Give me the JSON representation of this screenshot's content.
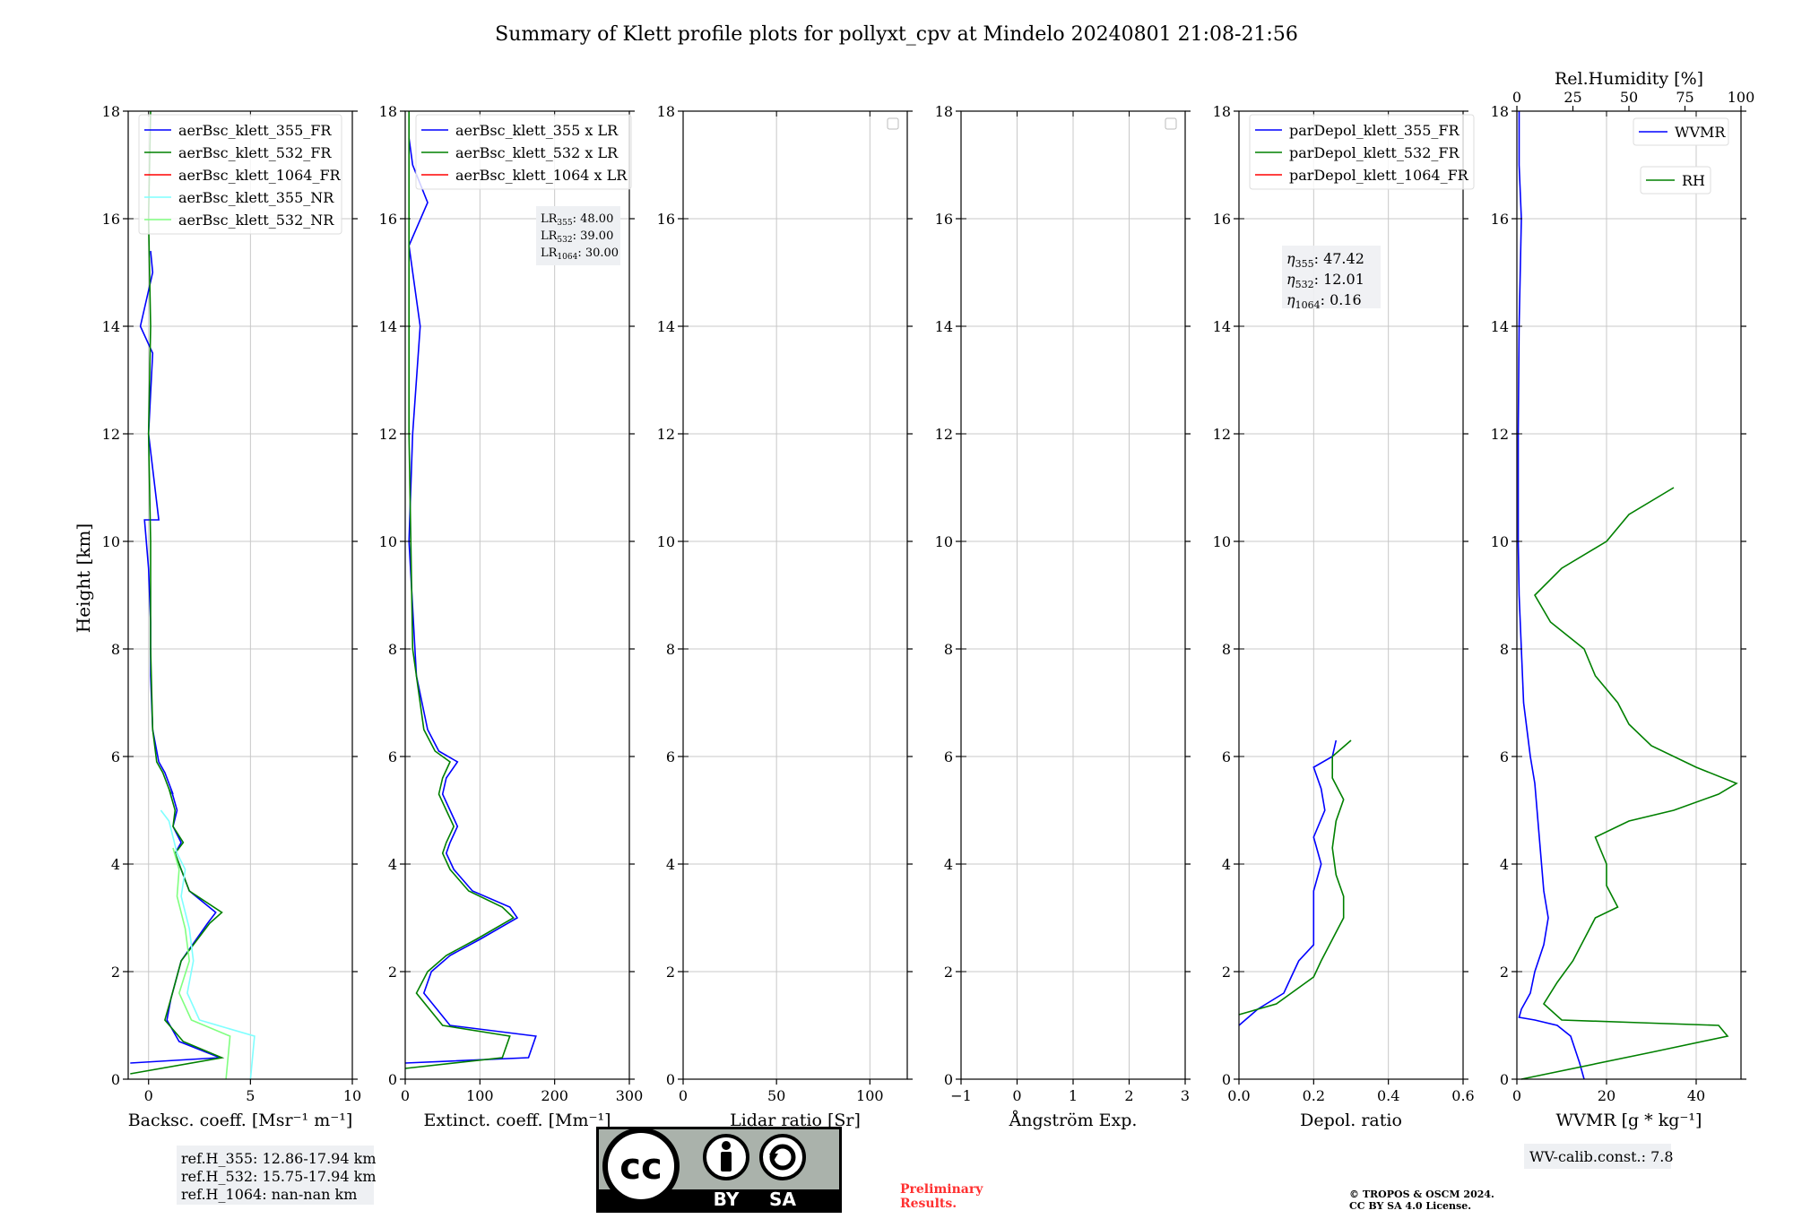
{
  "title": "Summary of Klett profile plots for pollyxt_cpv at Mindelo 20240801 21:08-21:56",
  "ylabel": "Height [km]",
  "colors": {
    "b355": "#0000ff",
    "b532": "#008000",
    "b1064": "#ff0000",
    "nr355": "#7fffff",
    "nr532": "#80ff80",
    "grid": "#c8c8c8"
  },
  "panels": [
    {
      "key": "bsc",
      "xlabel": "Backsc. coeff. [Msr⁻¹ m⁻¹]",
      "xlim": [
        -1,
        10
      ],
      "xticks": [
        0,
        5,
        10
      ],
      "legend": [
        "aerBsc_klett_355_FR",
        "aerBsc_klett_532_FR",
        "aerBsc_klett_1064_FR",
        "aerBsc_klett_355_NR",
        "aerBsc_klett_532_NR"
      ]
    },
    {
      "key": "ext",
      "xlabel": "Extinct. coeff. [Mm⁻¹]",
      "xlim": [
        0,
        300
      ],
      "xticks": [
        0,
        100,
        200,
        300
      ],
      "legend": [
        "aerBsc_klett_355 x LR",
        "aerBsc_klett_532 x LR",
        "aerBsc_klett_1064 x LR"
      ],
      "lr_box": [
        "48.00",
        "39.00",
        "30.00"
      ]
    },
    {
      "key": "lr",
      "xlabel": "Lidar ratio [Sr]",
      "xlim": [
        0,
        120
      ],
      "xticks": [
        0,
        50,
        100
      ],
      "legend": []
    },
    {
      "key": "ang",
      "xlabel": "Ångström Exp.",
      "xlim": [
        -1,
        3
      ],
      "xticks": [
        -1,
        0,
        1,
        2,
        3
      ],
      "legend": []
    },
    {
      "key": "dep",
      "xlabel": "Depol. ratio",
      "xlim": [
        0,
        0.6
      ],
      "xticks": [
        0.0,
        0.2,
        0.4,
        0.6
      ],
      "xtick_labels": [
        "0.0",
        "0.2",
        "0.4",
        "0.6"
      ],
      "legend": [
        "parDepol_klett_355_FR",
        "parDepol_klett_532_FR",
        "parDepol_klett_1064_FR"
      ],
      "eta": [
        "47.42",
        "12.01",
        "0.16"
      ]
    },
    {
      "key": "wv",
      "xlabel": "WVMR [g * kg⁻¹]",
      "xlim": [
        0,
        50
      ],
      "xticks": [
        0,
        20,
        40
      ],
      "legend": [
        "WVMR",
        "RH"
      ],
      "top_label": "Rel.Humidity [%]",
      "top_xlim": [
        0,
        100
      ],
      "top_ticks": [
        0,
        25,
        50,
        75,
        100
      ]
    }
  ],
  "refh": [
    "ref.H_355: 12.86-17.94 km",
    "ref.H_532: 15.75-17.94 km",
    "ref.H_1064: nan-nan km"
  ],
  "wv_calib": "WV-calib.const.: 7.8",
  "preliminary": [
    "Preliminary",
    "Results."
  ],
  "copyright": [
    "© TROPOS & OSCM 2024.",
    "CC BY SA 4.0 License."
  ],
  "cc_labels": {
    "cc": "cc",
    "by": "BY",
    "sa": "SA"
  },
  "chart_data": [
    {
      "type": "line",
      "title": "Summary of Klett profile plots for pollyxt_cpv at Mindelo 20240801 21:08-21:56",
      "xlabel": "Backsc. coeff. [Msr⁻¹ m⁻¹]",
      "ylabel": "Height [km]",
      "xlim": [
        -1,
        10
      ],
      "ylim": [
        0,
        18
      ],
      "grid": true,
      "legend_position": "top-left",
      "series": [
        {
          "name": "aerBsc_klett_355_FR",
          "x": [
            -0.9,
            3.5,
            1.5,
            0.9,
            1.1,
            1.6,
            2.9,
            3.3,
            2.0,
            1.6,
            1.3,
            1.6,
            1.2,
            1.4,
            1.1,
            1.2,
            0.8,
            0.5,
            0.2,
            0.1,
            0.1,
            0.0,
            -0.2,
            0.5,
            0.0,
            0.2,
            -0.4,
            0.2,
            0.1
          ],
          "y": [
            0.3,
            0.4,
            0.7,
            1.1,
            1.5,
            2.2,
            2.9,
            3.1,
            3.5,
            3.9,
            4.2,
            4.4,
            4.7,
            5.0,
            5.4,
            5.3,
            5.7,
            5.9,
            6.5,
            7.5,
            8.5,
            9.5,
            10.4,
            10.4,
            12,
            13.5,
            14.0,
            15.0,
            15.4
          ]
        },
        {
          "name": "aerBsc_klett_532_FR",
          "x": [
            -0.9,
            3.6,
            1.7,
            0.8,
            1.1,
            1.6,
            3.0,
            3.6,
            2.0,
            1.6,
            1.3,
            1.7,
            1.2,
            1.3,
            1.0,
            1.1,
            0.7,
            0.4,
            0.2,
            0.1,
            0.1,
            0.0,
            0.1,
            0.0,
            0.1
          ],
          "y": [
            0.1,
            0.4,
            0.7,
            1.1,
            1.5,
            2.2,
            2.9,
            3.1,
            3.5,
            3.9,
            4.2,
            4.4,
            4.7,
            5.0,
            5.4,
            5.3,
            5.7,
            5.9,
            6.5,
            8,
            10,
            12,
            14,
            16,
            18
          ]
        },
        {
          "name": "aerBsc_klett_1064_FR",
          "x": [],
          "y": []
        },
        {
          "name": "aerBsc_klett_355_NR",
          "x": [
            5.0,
            5.2,
            2.5,
            1.9,
            2.2,
            2.0,
            1.6,
            1.8,
            1.4,
            1.2,
            1.0,
            0.6
          ],
          "y": [
            0.0,
            0.8,
            1.1,
            1.6,
            2.2,
            2.8,
            3.4,
            3.9,
            4.2,
            4.5,
            4.8,
            5.0
          ]
        },
        {
          "name": "aerBsc_klett_532_NR",
          "x": [
            3.8,
            4.0,
            2.1,
            1.5,
            2.0,
            1.8,
            1.4,
            1.5,
            1.2
          ],
          "y": [
            0.0,
            0.8,
            1.1,
            1.6,
            2.2,
            2.8,
            3.4,
            3.9,
            4.3
          ]
        }
      ]
    },
    {
      "type": "line",
      "xlabel": "Extinct. coeff. [Mm⁻¹]",
      "xlim": [
        0,
        300
      ],
      "ylim": [
        0,
        18
      ],
      "grid": true,
      "legend_position": "top-left",
      "lidar_ratios_sr": {
        "355": 48.0,
        "532": 39.0,
        "1064": 30.0
      },
      "series": [
        {
          "name": "aerBsc_klett_355 x LR",
          "x": [
            0,
            165,
            175,
            60,
            25,
            35,
            60,
            100,
            150,
            140,
            90,
            65,
            55,
            60,
            70,
            60,
            50,
            55,
            70,
            45,
            30,
            15,
            5,
            10,
            20,
            5,
            30,
            10,
            5
          ],
          "y": [
            0.3,
            0.4,
            0.8,
            1.0,
            1.6,
            2.0,
            2.3,
            2.6,
            3.0,
            3.2,
            3.5,
            3.9,
            4.2,
            4.4,
            4.7,
            5.0,
            5.3,
            5.6,
            5.9,
            6.1,
            6.5,
            7.5,
            10,
            12,
            14,
            15.5,
            16.3,
            17.0,
            17.5
          ]
        },
        {
          "name": "aerBsc_klett_532 x LR",
          "x": [
            0,
            130,
            140,
            50,
            15,
            30,
            55,
            95,
            145,
            130,
            85,
            60,
            50,
            55,
            65,
            55,
            45,
            50,
            60,
            40,
            25,
            10,
            5,
            5,
            5
          ],
          "y": [
            0.2,
            0.4,
            0.8,
            1.0,
            1.6,
            2.0,
            2.3,
            2.6,
            3.0,
            3.2,
            3.5,
            3.9,
            4.2,
            4.4,
            4.7,
            5.0,
            5.3,
            5.6,
            5.9,
            6.1,
            6.5,
            8,
            12,
            16,
            18
          ]
        },
        {
          "name": "aerBsc_klett_1064 x LR",
          "x": [],
          "y": []
        }
      ]
    },
    {
      "type": "line",
      "xlabel": "Lidar ratio [Sr]",
      "xlim": [
        0,
        120
      ],
      "ylim": [
        0,
        18
      ],
      "grid": true,
      "series": []
    },
    {
      "type": "line",
      "xlabel": "Ångström Exp.",
      "xlim": [
        -1,
        3
      ],
      "ylim": [
        0,
        18
      ],
      "grid": true,
      "series": []
    },
    {
      "type": "line",
      "xlabel": "Depol. ratio",
      "xlim": [
        0,
        0.6
      ],
      "ylim": [
        0,
        18
      ],
      "grid": true,
      "legend_position": "top-left",
      "values_eta": {
        "355": 47.42,
        "532": 12.01,
        "1064": 0.16
      },
      "series": [
        {
          "name": "parDepol_klett_355_FR",
          "x": [
            0.0,
            0.05,
            0.12,
            0.14,
            0.16,
            0.2,
            0.2,
            0.2,
            0.22,
            0.2,
            0.23,
            0.22,
            0.2,
            0.25,
            0.26
          ],
          "y": [
            1.0,
            1.3,
            1.6,
            1.9,
            2.2,
            2.5,
            3.0,
            3.5,
            4.0,
            4.5,
            5.0,
            5.4,
            5.8,
            6.0,
            6.3
          ]
        },
        {
          "name": "parDepol_klett_532_FR",
          "x": [
            0.0,
            0.1,
            0.2,
            0.22,
            0.25,
            0.28,
            0.28,
            0.26,
            0.25,
            0.26,
            0.28,
            0.25,
            0.25,
            0.3
          ],
          "y": [
            1.2,
            1.4,
            1.9,
            2.2,
            2.6,
            3.0,
            3.4,
            3.8,
            4.3,
            4.8,
            5.2,
            5.6,
            6.0,
            6.3
          ]
        },
        {
          "name": "parDepol_klett_1064_FR",
          "x": [],
          "y": []
        }
      ]
    },
    {
      "type": "line",
      "xlabel": "WVMR [g * kg⁻¹]",
      "xlim": [
        0,
        50
      ],
      "ylim": [
        0,
        18
      ],
      "grid": true,
      "legend_position": "top-right",
      "top_axis": {
        "label": "Rel.Humidity [%]",
        "xlim": [
          0,
          100
        ]
      },
      "series": [
        {
          "name": "WVMR",
          "x": [
            15,
            14,
            12,
            9,
            4,
            0.5,
            1,
            3,
            4,
            6,
            7,
            6,
            5,
            4,
            3,
            1.5,
            1,
            0.5,
            0.3,
            0.3,
            0.5,
            1,
            0.5,
            0.5
          ],
          "y": [
            0.0,
            0.3,
            0.8,
            1.0,
            1.1,
            1.15,
            1.3,
            1.6,
            2.0,
            2.5,
            3.0,
            3.5,
            4.5,
            5.5,
            6.0,
            7.0,
            8.0,
            9.0,
            10.0,
            12.0,
            14.0,
            16.0,
            17.0,
            18.0
          ]
        },
        {
          "name": "RH",
          "x": [
            2,
            60,
            94,
            90,
            55,
            20,
            12,
            18,
            25,
            30,
            35,
            45,
            40,
            40,
            35,
            50,
            70,
            90,
            98,
            80,
            60,
            50,
            45,
            35,
            30,
            15,
            8,
            20,
            40,
            50,
            70
          ],
          "y": [
            0.0,
            0.5,
            0.8,
            1.0,
            1.05,
            1.1,
            1.4,
            1.8,
            2.2,
            2.6,
            3.0,
            3.2,
            3.6,
            4.0,
            4.5,
            4.8,
            5.0,
            5.3,
            5.5,
            5.8,
            6.2,
            6.6,
            7.0,
            7.5,
            8.0,
            8.5,
            9.0,
            9.5,
            10.0,
            10.5,
            11.0
          ]
        }
      ]
    }
  ]
}
